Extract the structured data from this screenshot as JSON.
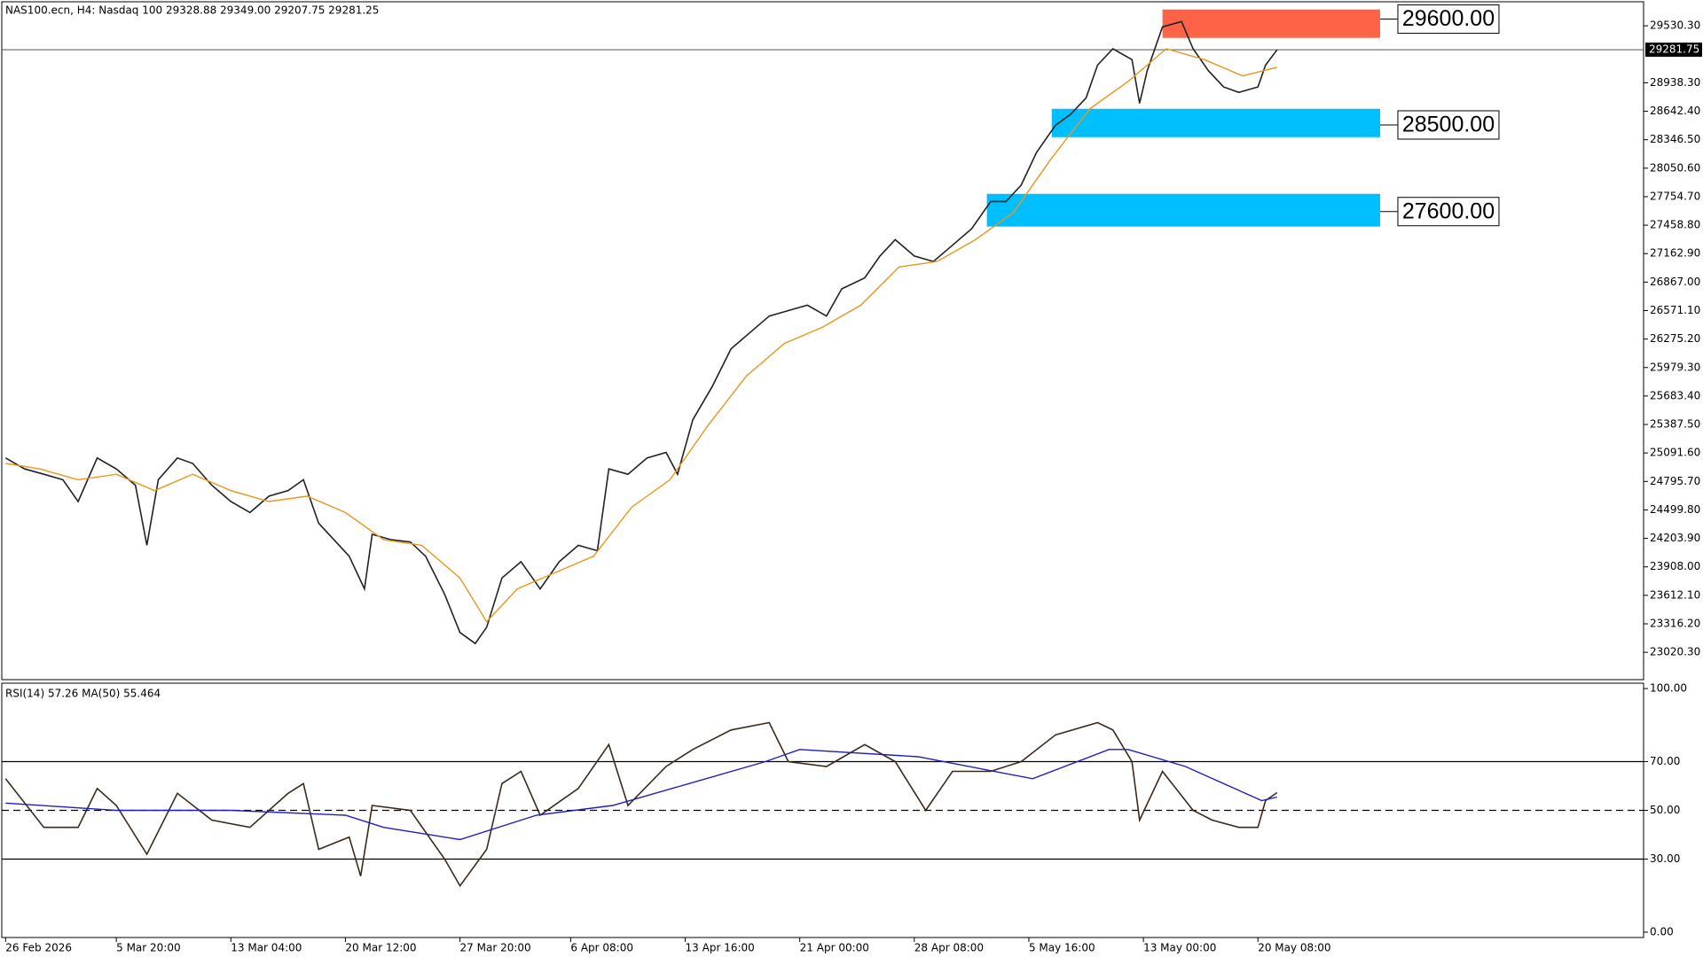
{
  "chart_data": [
    {
      "type": "line",
      "title": "NAS100.ecn, H4: Nasdaq 100 29328.88 29349.00 29207.75 29281.25",
      "xlim": [
        0,
        430
      ],
      "ylim": [
        22736,
        29780
      ],
      "yticks": [
        {
          "value": 23020.3,
          "label": "23020.30"
        },
        {
          "value": 23316.2,
          "label": "23316.20"
        },
        {
          "value": 23612.1,
          "label": "23612.10"
        },
        {
          "value": 23908.0,
          "label": "23908.00"
        },
        {
          "value": 24203.9,
          "label": "24203.90"
        },
        {
          "value": 24499.8,
          "label": "24499.80"
        },
        {
          "value": 24795.7,
          "label": "24795.70"
        },
        {
          "value": 25091.6,
          "label": "25091.60"
        },
        {
          "value": 25387.5,
          "label": "25387.50"
        },
        {
          "value": 25683.4,
          "label": "25683.40"
        },
        {
          "value": 25979.3,
          "label": "25979.30"
        },
        {
          "value": 26275.2,
          "label": "26275.20"
        },
        {
          "value": 26571.1,
          "label": "26571.10"
        },
        {
          "value": 26867.0,
          "label": "26867.00"
        },
        {
          "value": 27162.9,
          "label": "27162.90"
        },
        {
          "value": 27458.8,
          "label": "27458.80"
        },
        {
          "value": 27754.7,
          "label": "27754.70"
        },
        {
          "value": 28050.6,
          "label": "28050.60"
        },
        {
          "value": 28346.5,
          "label": "28346.50"
        },
        {
          "value": 28642.4,
          "label": "28642.40"
        },
        {
          "value": 28938.3,
          "label": "28938.30"
        },
        {
          "value": 29530.3,
          "label": "29530.30"
        }
      ],
      "last_price": {
        "value": 29281.75,
        "label": "29281.75"
      },
      "zones": [
        {
          "label": "29600.00",
          "value": 29600,
          "top": 29700,
          "bottom": 29405,
          "start": 304,
          "end": 361,
          "color": "#ff6347"
        },
        {
          "label": "28500.00",
          "value": 28500,
          "top": 28668,
          "bottom": 28373,
          "start": 275,
          "end": 361,
          "color": "#00bfff"
        },
        {
          "label": "27600.00",
          "value": 27600,
          "top": 27784,
          "bottom": 27444,
          "start": 258,
          "end": 361,
          "color": "#00bfff"
        }
      ],
      "series": [
        {
          "color": "#222222",
          "x": [
            1,
            6,
            11,
            16,
            20,
            25,
            30,
            35,
            38,
            41,
            46,
            50,
            55,
            60,
            65,
            70,
            75,
            79,
            83,
            87,
            91,
            95,
            97,
            102,
            107,
            111,
            116,
            120,
            124,
            127,
            131,
            136,
            141,
            146,
            151,
            156,
            159,
            164,
            169,
            174,
            177,
            181,
            186,
            191,
            196,
            201,
            206,
            211,
            216,
            220,
            226,
            230,
            234,
            239,
            244,
            249,
            254,
            259,
            263,
            267,
            271,
            276,
            280,
            284,
            287,
            291,
            296,
            298,
            300,
            304,
            309,
            312,
            316,
            320,
            324,
            329,
            331,
            334
          ],
          "values": [
            25040,
            24926,
            24870,
            24813,
            24587,
            25040,
            24926,
            24756,
            24132,
            24813,
            25040,
            24983,
            24756,
            24587,
            24473,
            24643,
            24700,
            24813,
            24360,
            24190,
            24019,
            23679,
            24246,
            24190,
            24167,
            24019,
            23623,
            23226,
            23112,
            23281,
            23792,
            23962,
            23679,
            23962,
            24132,
            24076,
            24926,
            24870,
            25040,
            25097,
            24870,
            25437,
            25777,
            26174,
            26344,
            26514,
            26571,
            26627,
            26514,
            26797,
            26911,
            27138,
            27308,
            27138,
            27081,
            27251,
            27421,
            27705,
            27705,
            27875,
            28215,
            28498,
            28612,
            28782,
            29122,
            29292,
            29179,
            28725,
            29065,
            29519,
            29575,
            29292,
            29065,
            28895,
            28838,
            28895,
            29122,
            29281.25
          ]
        },
        {
          "color": "#e8961e",
          "x": [
            1,
            10,
            20,
            30,
            40,
            50,
            60,
            70,
            80,
            90,
            100,
            110,
            120,
            127,
            135,
            145,
            155,
            165,
            175,
            185,
            195,
            205,
            215,
            225,
            235,
            245,
            255,
            265,
            275,
            285,
            295,
            305,
            315,
            325,
            334
          ],
          "values": [
            24983,
            24926,
            24813,
            24870,
            24700,
            24870,
            24700,
            24587,
            24643,
            24473,
            24190,
            24132,
            23792,
            23338,
            23679,
            23849,
            24019,
            24530,
            24813,
            25380,
            25890,
            26230,
            26400,
            26627,
            27024,
            27081,
            27308,
            27591,
            28158,
            28668,
            28952,
            29292,
            29179,
            29009,
            29100
          ]
        }
      ]
    },
    {
      "type": "line",
      "title": "RSI(14) 57.26 MA(50) 55.464",
      "xlim": [
        0,
        430
      ],
      "ylim": [
        -2.2,
        102.2
      ],
      "yticks": [
        {
          "value": 0,
          "label": "0.00"
        },
        {
          "value": 30,
          "label": "30.00"
        },
        {
          "value": 50,
          "label": "50.00"
        },
        {
          "value": 70,
          "label": "70.00"
        },
        {
          "value": 100,
          "label": "100.00"
        }
      ],
      "levels": [
        70,
        50,
        30
      ],
      "level_styles": [
        "solid",
        "dashed",
        "solid"
      ],
      "xticks": [
        {
          "value": 1,
          "label": "26 Feb 2026"
        },
        {
          "value": 30,
          "label": "5 Mar 20:00"
        },
        {
          "value": 60,
          "label": "13 Mar 04:00"
        },
        {
          "value": 90,
          "label": "20 Mar 12:00"
        },
        {
          "value": 120,
          "label": "27 Mar 20:00"
        },
        {
          "value": 149,
          "label": "6 Apr 08:00"
        },
        {
          "value": 179,
          "label": "13 Apr 16:00"
        },
        {
          "value": 209,
          "label": "21 Apr 00:00"
        },
        {
          "value": 239,
          "label": "28 Apr 08:00"
        },
        {
          "value": 269,
          "label": "5 May 16:00"
        },
        {
          "value": 299,
          "label": "13 May 00:00"
        },
        {
          "value": 329,
          "label": "20 May 08:00"
        }
      ],
      "series": [
        {
          "color": "#3b2a1a",
          "x": [
            1,
            11,
            20,
            25,
            30,
            38,
            46,
            55,
            65,
            75,
            79,
            83,
            91,
            94,
            97,
            107,
            116,
            120,
            127,
            131,
            136,
            141,
            151,
            159,
            164,
            174,
            181,
            191,
            201,
            206,
            216,
            226,
            234,
            242,
            249,
            259,
            267,
            276,
            287,
            291,
            296,
            298,
            304,
            312,
            317,
            324,
            329,
            331,
            334
          ],
          "values": [
            63,
            43,
            43,
            59,
            52,
            32,
            57,
            46,
            43,
            57,
            61,
            34,
            39,
            23,
            52,
            50,
            30,
            19,
            34,
            61,
            66,
            48,
            59,
            77,
            52,
            68,
            75,
            83,
            86,
            70,
            68,
            77,
            70,
            50,
            66,
            66,
            70,
            81,
            86,
            83,
            70,
            46,
            66,
            50,
            46,
            43,
            43,
            54,
            57.26
          ]
        },
        {
          "color": "#1f1fbf",
          "x": [
            1,
            30,
            60,
            90,
            100,
            120,
            140,
            160,
            180,
            200,
            209,
            240,
            270,
            290,
            295,
            310,
            330,
            334
          ],
          "values": [
            53,
            50,
            50,
            48,
            43,
            38,
            48,
            52,
            61,
            70,
            75,
            72,
            63,
            75,
            75,
            68,
            54,
            55.464
          ]
        }
      ]
    }
  ]
}
